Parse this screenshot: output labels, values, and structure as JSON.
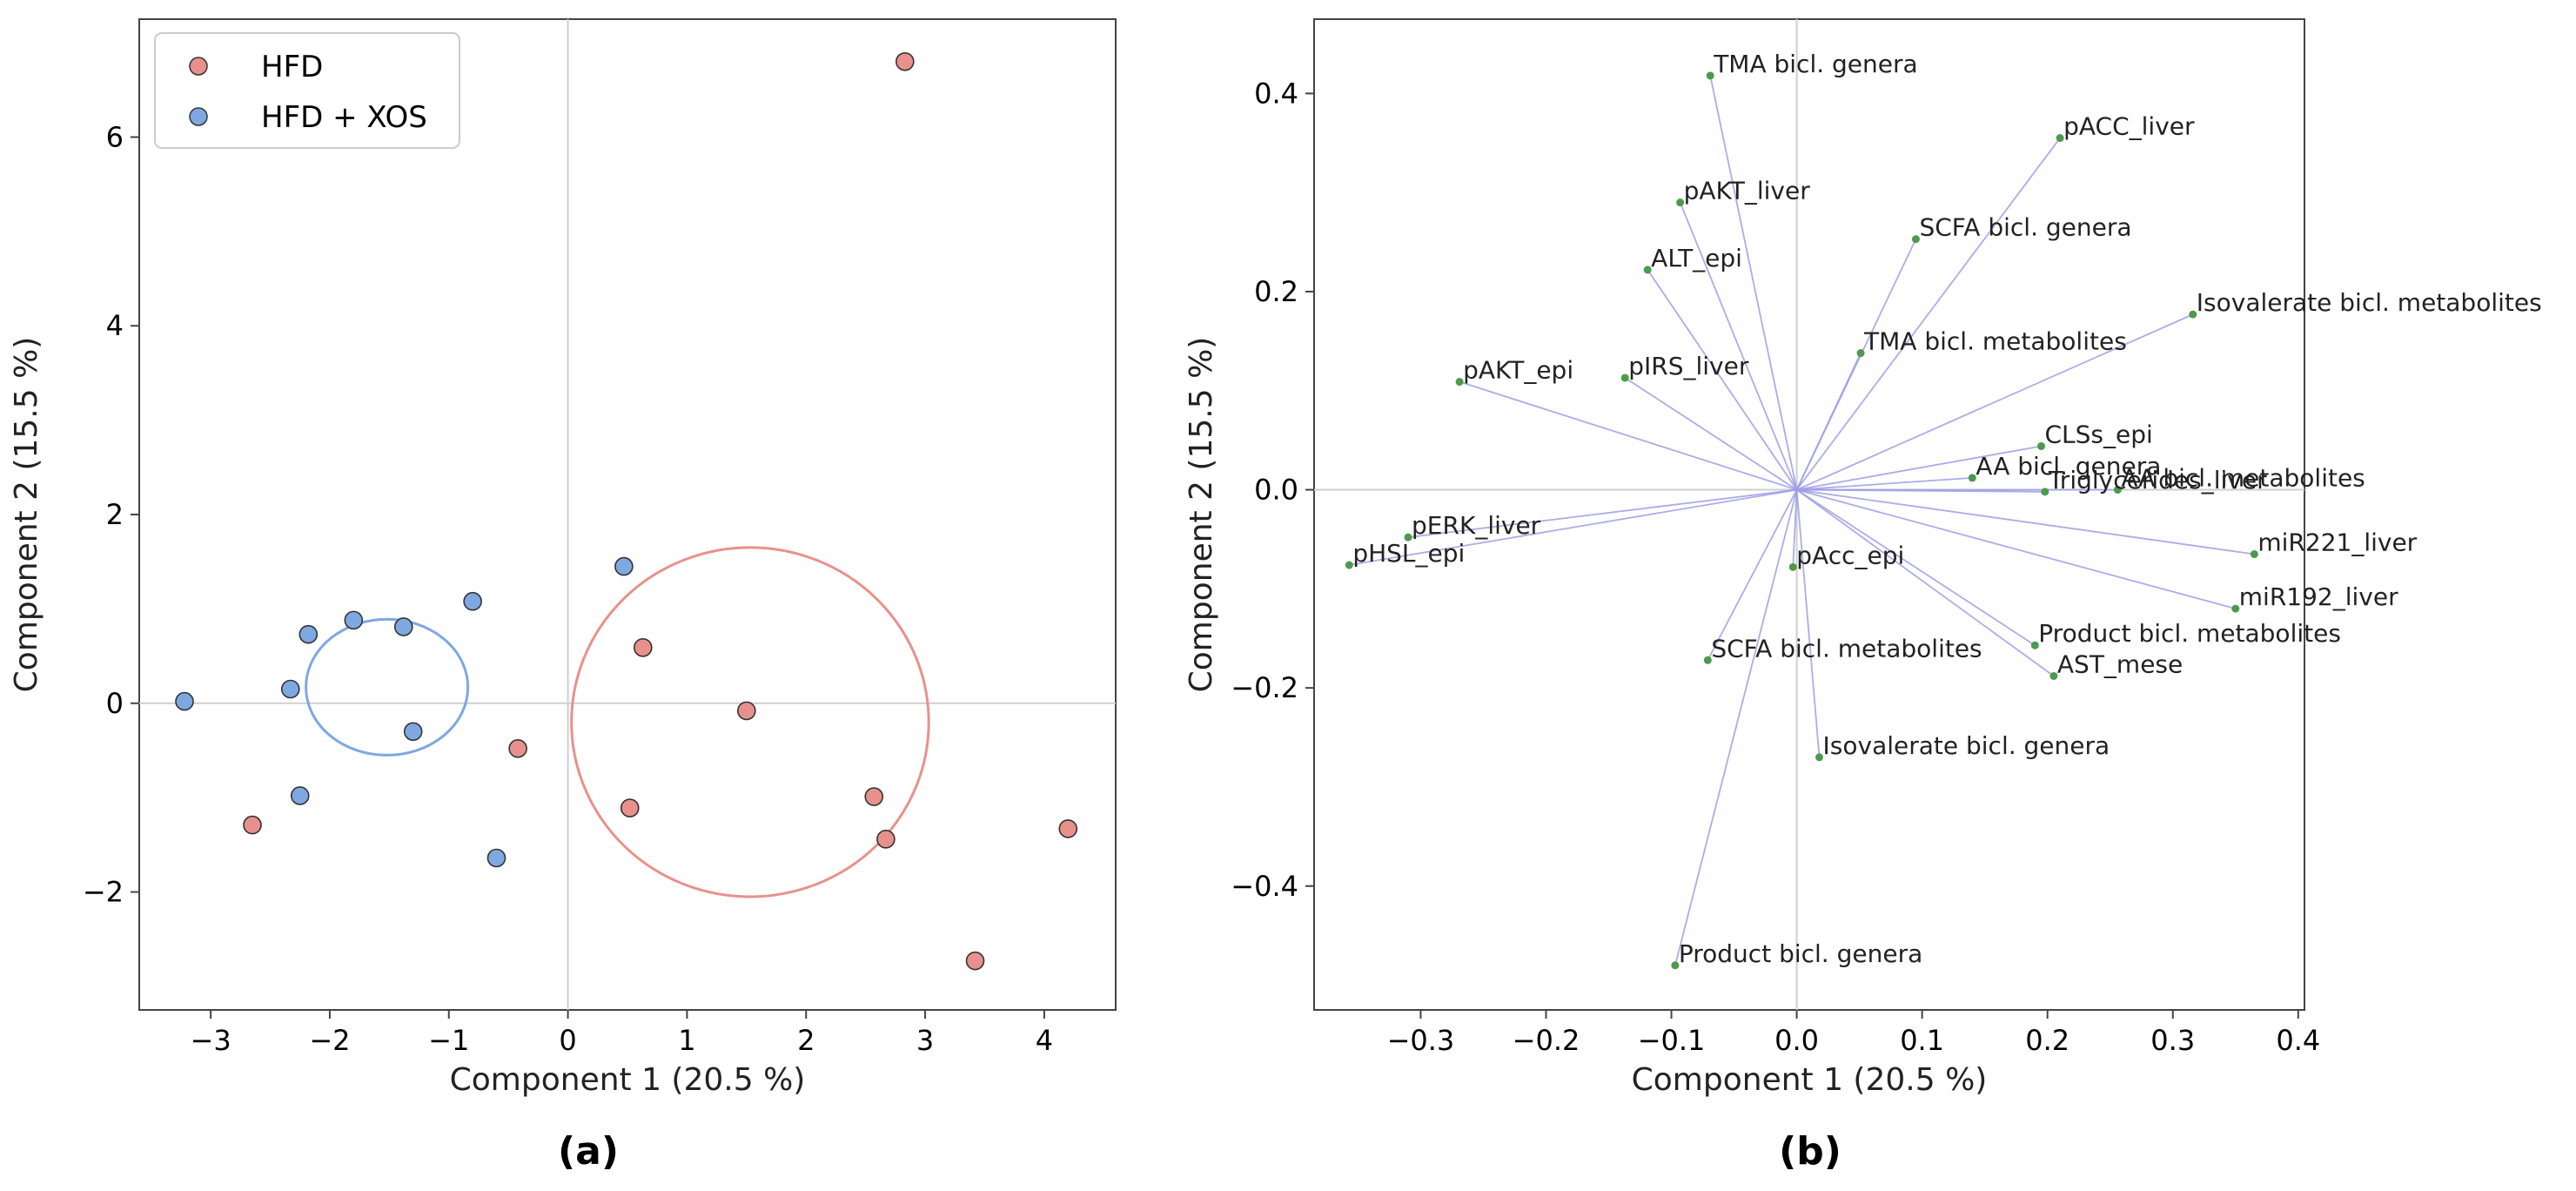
{
  "chart_data": [
    {
      "panel": "(a)",
      "type": "scatter",
      "xlabel": "Component 1 (20.5 %)",
      "ylabel": "Component 2 (15.5 %)",
      "xlim": [
        -3.6,
        4.6
      ],
      "ylim": [
        -3.25,
        7.25
      ],
      "xticks": [
        -3,
        -2,
        -1,
        0,
        1,
        2,
        3,
        4
      ],
      "yticks": [
        -2,
        0,
        2,
        4,
        6
      ],
      "reference_lines": {
        "x": 0,
        "y": 0
      },
      "legend_position": "top-left",
      "series": [
        {
          "name": "HFD",
          "color": "#e8918c",
          "points": [
            [
              2.83,
              6.8
            ],
            [
              0.63,
              0.59
            ],
            [
              1.5,
              -0.08
            ],
            [
              -0.42,
              -0.48
            ],
            [
              0.52,
              -1.11
            ],
            [
              2.57,
              -0.99
            ],
            [
              2.67,
              -1.44
            ],
            [
              4.2,
              -1.33
            ],
            [
              3.42,
              -2.73
            ],
            [
              -2.65,
              -1.29
            ]
          ],
          "ellipse": {
            "cx": 1.53,
            "cy": -0.2,
            "rx": 1.5,
            "ry": 1.85
          }
        },
        {
          "name": "HFD + XOS",
          "color": "#7ea8e0",
          "points": [
            [
              0.47,
              1.45
            ],
            [
              -0.8,
              1.08
            ],
            [
              -1.8,
              0.88
            ],
            [
              -1.38,
              0.81
            ],
            [
              -2.18,
              0.73
            ],
            [
              -2.33,
              0.15
            ],
            [
              -3.22,
              0.02
            ],
            [
              -1.3,
              -0.3
            ],
            [
              -2.25,
              -0.98
            ],
            [
              -0.6,
              -1.64
            ]
          ],
          "ellipse": {
            "cx": -1.52,
            "cy": 0.17,
            "rx": 0.68,
            "ry": 0.72
          }
        }
      ]
    },
    {
      "panel": "(b)",
      "type": "scatter",
      "subtype": "loadings-biplot",
      "xlabel": "Component 1 (20.5 %)",
      "ylabel": "Component 2 (15.5 %)",
      "xlim": [
        -0.385,
        0.405
      ],
      "ylim": [
        -0.525,
        0.475
      ],
      "xticks": [
        -0.3,
        -0.2,
        -0.1,
        0.0,
        0.1,
        0.2,
        0.3,
        0.4
      ],
      "xtick_labels": [
        "−0.3",
        "−0.2",
        "−0.1",
        "0.0",
        "0.1",
        "0.2",
        "0.3",
        "0.4"
      ],
      "yticks": [
        -0.4,
        -0.2,
        0.0,
        0.2,
        0.4
      ],
      "ytick_labels": [
        "−0.4",
        "−0.2",
        "0.0",
        "0.2",
        "0.4"
      ],
      "reference_lines": {
        "x": 0,
        "y": 0
      },
      "vector_color": "#9d9de6",
      "point_color": "#4c9a4c",
      "loadings": [
        {
          "label": "TMA bicl. genera",
          "x": -0.069,
          "y": 0.418
        },
        {
          "label": "pACC_liver",
          "x": 0.21,
          "y": 0.355
        },
        {
          "label": "pAKT_liver",
          "x": -0.093,
          "y": 0.29
        },
        {
          "label": "SCFA bicl. genera",
          "x": 0.095,
          "y": 0.253
        },
        {
          "label": "ALT_epi",
          "x": -0.119,
          "y": 0.222
        },
        {
          "label": "Isovalerate bicl. metabolites",
          "x": 0.316,
          "y": 0.177
        },
        {
          "label": "TMA bicl. metabolites",
          "x": 0.051,
          "y": 0.138
        },
        {
          "label": "pAKT_epi",
          "x": -0.269,
          "y": 0.109
        },
        {
          "label": "pIRS_liver",
          "x": -0.137,
          "y": 0.113
        },
        {
          "label": "CLSs_epi",
          "x": 0.195,
          "y": 0.044
        },
        {
          "label": "AA bicl. genera",
          "x": 0.14,
          "y": 0.012
        },
        {
          "label": "AA bicl. metabolites",
          "x": 0.256,
          "y": 0.0
        },
        {
          "label": "Triglycerides_liver",
          "x": 0.198,
          "y": -0.002
        },
        {
          "label": "pERK_liver",
          "x": -0.31,
          "y": -0.048
        },
        {
          "label": "pHSL_epi",
          "x": -0.357,
          "y": -0.076
        },
        {
          "label": "pAcc_epi",
          "x": -0.003,
          "y": -0.078
        },
        {
          "label": "miR221_liver",
          "x": 0.365,
          "y": -0.065
        },
        {
          "label": "miR192_liver",
          "x": 0.35,
          "y": -0.12
        },
        {
          "label": "Product bicl. metabolites",
          "x": 0.19,
          "y": -0.157
        },
        {
          "label": "SCFA bicl. metabolites",
          "x": -0.071,
          "y": -0.172
        },
        {
          "label": "AST_mese",
          "x": 0.205,
          "y": -0.188
        },
        {
          "label": "Isovalerate bicl. genera",
          "x": 0.018,
          "y": -0.27
        },
        {
          "label": "Product bicl. genera",
          "x": -0.097,
          "y": -0.48
        }
      ]
    }
  ]
}
